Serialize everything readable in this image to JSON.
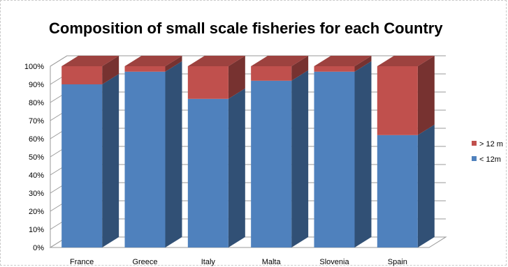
{
  "chart_data": {
    "type": "bar",
    "stacked": true,
    "percent": true,
    "three_d": true,
    "title": "Composition of small scale fisheries for each Country",
    "xlabel": "",
    "ylabel": "",
    "categories": [
      "France",
      "Greece",
      "Italy",
      "Malta",
      "Slovenia",
      "Spain"
    ],
    "series": [
      {
        "name": "< 12m",
        "values": [
          90,
          97,
          82,
          92,
          97,
          62
        ],
        "color": "#4f81bd"
      },
      {
        "name": "> 12 m",
        "values": [
          10,
          3,
          18,
          8,
          3,
          38
        ],
        "color": "#c0504d"
      }
    ],
    "ylim": [
      0,
      100
    ],
    "yticks": [
      "0%",
      "10%",
      "20%",
      "30%",
      "40%",
      "50%",
      "60%",
      "70%",
      "80%",
      "90%",
      "100%"
    ],
    "grid": true,
    "legend_position": "right"
  }
}
